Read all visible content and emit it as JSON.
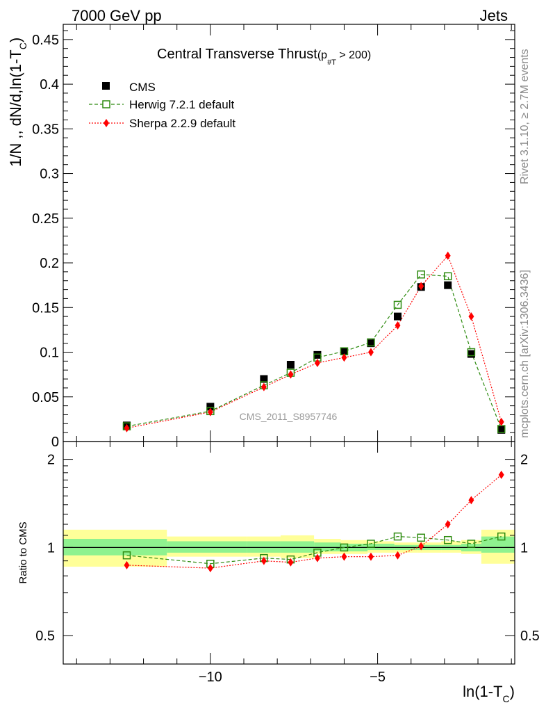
{
  "header": {
    "left": "7000 GeV pp",
    "right": "Jets"
  },
  "side_labels": {
    "rivet": "Rivet 3.1.10, ≥ 2.7M events",
    "mcplots": "mcplots.cern.ch [arXiv:1306.3436]"
  },
  "watermark": "CMS_2011_S8957746",
  "colors": {
    "cms": "#000000",
    "herwig": "#2e8b10",
    "sherpa": "#ff0000",
    "band_inner": "#8ff28f",
    "band_outer": "#ffff99"
  },
  "chart_data": [
    {
      "type": "scatter",
      "title_main": "Central Transverse Thrust",
      "title_sub": "(p",
      "title_sub_sub": "#T",
      "title_sub_tail": " > 200)",
      "ylabel": "1/N ,, dN/d,ln(1-T",
      "ylabel_sub": "C",
      "ylabel_tail": ")",
      "xlim": [
        -14.4,
        -0.9
      ],
      "ylim": [
        0,
        0.467
      ],
      "yticks": [
        0,
        0.05,
        0.1,
        0.15,
        0.2,
        0.25,
        0.3,
        0.35,
        0.4,
        0.45
      ],
      "ytick_labels": [
        "0",
        "0.05",
        "0.1",
        "0.15",
        "0.2",
        "0.25",
        "0.3",
        "0.35",
        "0.4",
        "0.45"
      ],
      "legend_position": "top-left",
      "x": [
        -12.5,
        -10,
        -8.4,
        -7.6,
        -6.8,
        -6.0,
        -5.2,
        -4.4,
        -3.7,
        -2.9,
        -2.2,
        -1.3
      ],
      "series": [
        {
          "name": "CMS",
          "marker": "filled-square",
          "values": [
            0.018,
            0.039,
            0.07,
            0.086,
            0.097,
            0.101,
            0.11,
            0.14,
            0.173,
            0.175,
            0.098,
            0.013
          ]
        },
        {
          "name": "Herwig 7.2.1 default",
          "marker": "open-square",
          "line": "dashed",
          "values": [
            0.017,
            0.034,
            0.063,
            0.077,
            0.094,
            0.101,
            0.111,
            0.153,
            0.187,
            0.185,
            0.1,
            0.014
          ]
        },
        {
          "name": "Sherpa 2.2.9 default",
          "marker": "diamond",
          "line": "dotted",
          "values": [
            0.015,
            0.033,
            0.061,
            0.075,
            0.088,
            0.094,
            0.1,
            0.13,
            0.174,
            0.208,
            0.14,
            0.022
          ]
        }
      ]
    },
    {
      "type": "scatter",
      "ylabel": "Ratio to CMS",
      "xlabel": "ln(1-T",
      "xlabel_sub": "C",
      "xlabel_tail": ")",
      "xlim": [
        -14.4,
        -0.9
      ],
      "ylim": [
        0.4,
        2.3
      ],
      "y_scale": "log",
      "yticks": [
        0.5,
        1,
        2
      ],
      "ytick_labels": [
        "0.5",
        "1",
        "2"
      ],
      "xticks": [
        -10,
        -5
      ],
      "xtick_labels": [
        "−10",
        "−5"
      ],
      "reference_line": 1,
      "x": [
        -12.5,
        -10,
        -8.4,
        -7.6,
        -6.8,
        -6.0,
        -5.2,
        -4.4,
        -3.7,
        -2.9,
        -2.2,
        -1.3
      ],
      "series": [
        {
          "name": "Herwig 7.2.1 default",
          "values": [
            0.94,
            0.88,
            0.92,
            0.91,
            0.96,
            1.0,
            1.03,
            1.09,
            1.08,
            1.06,
            1.03,
            1.09
          ]
        },
        {
          "name": "Sherpa 2.2.9 default",
          "values": [
            0.87,
            0.85,
            0.9,
            0.89,
            0.92,
            0.93,
            0.93,
            0.94,
            1.01,
            1.2,
            1.45,
            1.77
          ]
        }
      ],
      "uncertainty_bands": [
        {
          "x_range": [
            -14.4,
            -11.3
          ],
          "inner": [
            0.94,
            1.07
          ],
          "outer": [
            0.86,
            1.15
          ]
        },
        {
          "x_range": [
            -11.3,
            -8.9
          ],
          "inner": [
            0.96,
            1.05
          ],
          "outer": [
            0.93,
            1.09
          ]
        },
        {
          "x_range": [
            -8.9,
            -7.9
          ],
          "inner": [
            0.96,
            1.05
          ],
          "outer": [
            0.93,
            1.09
          ]
        },
        {
          "x_range": [
            -7.9,
            -6.9
          ],
          "inner": [
            0.96,
            1.05
          ],
          "outer": [
            0.92,
            1.1
          ]
        },
        {
          "x_range": [
            -6.9,
            -6.1
          ],
          "inner": [
            0.97,
            1.04
          ],
          "outer": [
            0.95,
            1.07
          ]
        },
        {
          "x_range": [
            -6.1,
            -5.3
          ],
          "inner": [
            0.97,
            1.03
          ],
          "outer": [
            0.95,
            1.06
          ]
        },
        {
          "x_range": [
            -5.3,
            -4.5
          ],
          "inner": [
            0.98,
            1.03
          ],
          "outer": [
            0.96,
            1.05
          ]
        },
        {
          "x_range": [
            -4.5,
            -3.8
          ],
          "inner": [
            0.98,
            1.02
          ],
          "outer": [
            0.96,
            1.04
          ]
        },
        {
          "x_range": [
            -3.8,
            -3.1
          ],
          "inner": [
            0.98,
            1.02
          ],
          "outer": [
            0.96,
            1.04
          ]
        },
        {
          "x_range": [
            -3.1,
            -2.5
          ],
          "inner": [
            0.98,
            1.02
          ],
          "outer": [
            0.96,
            1.05
          ]
        },
        {
          "x_range": [
            -2.5,
            -1.9
          ],
          "inner": [
            0.97,
            1.03
          ],
          "outer": [
            0.95,
            1.06
          ]
        },
        {
          "x_range": [
            -1.9,
            -0.9
          ],
          "inner": [
            0.96,
            1.09
          ],
          "outer": [
            0.88,
            1.15
          ]
        }
      ]
    }
  ]
}
